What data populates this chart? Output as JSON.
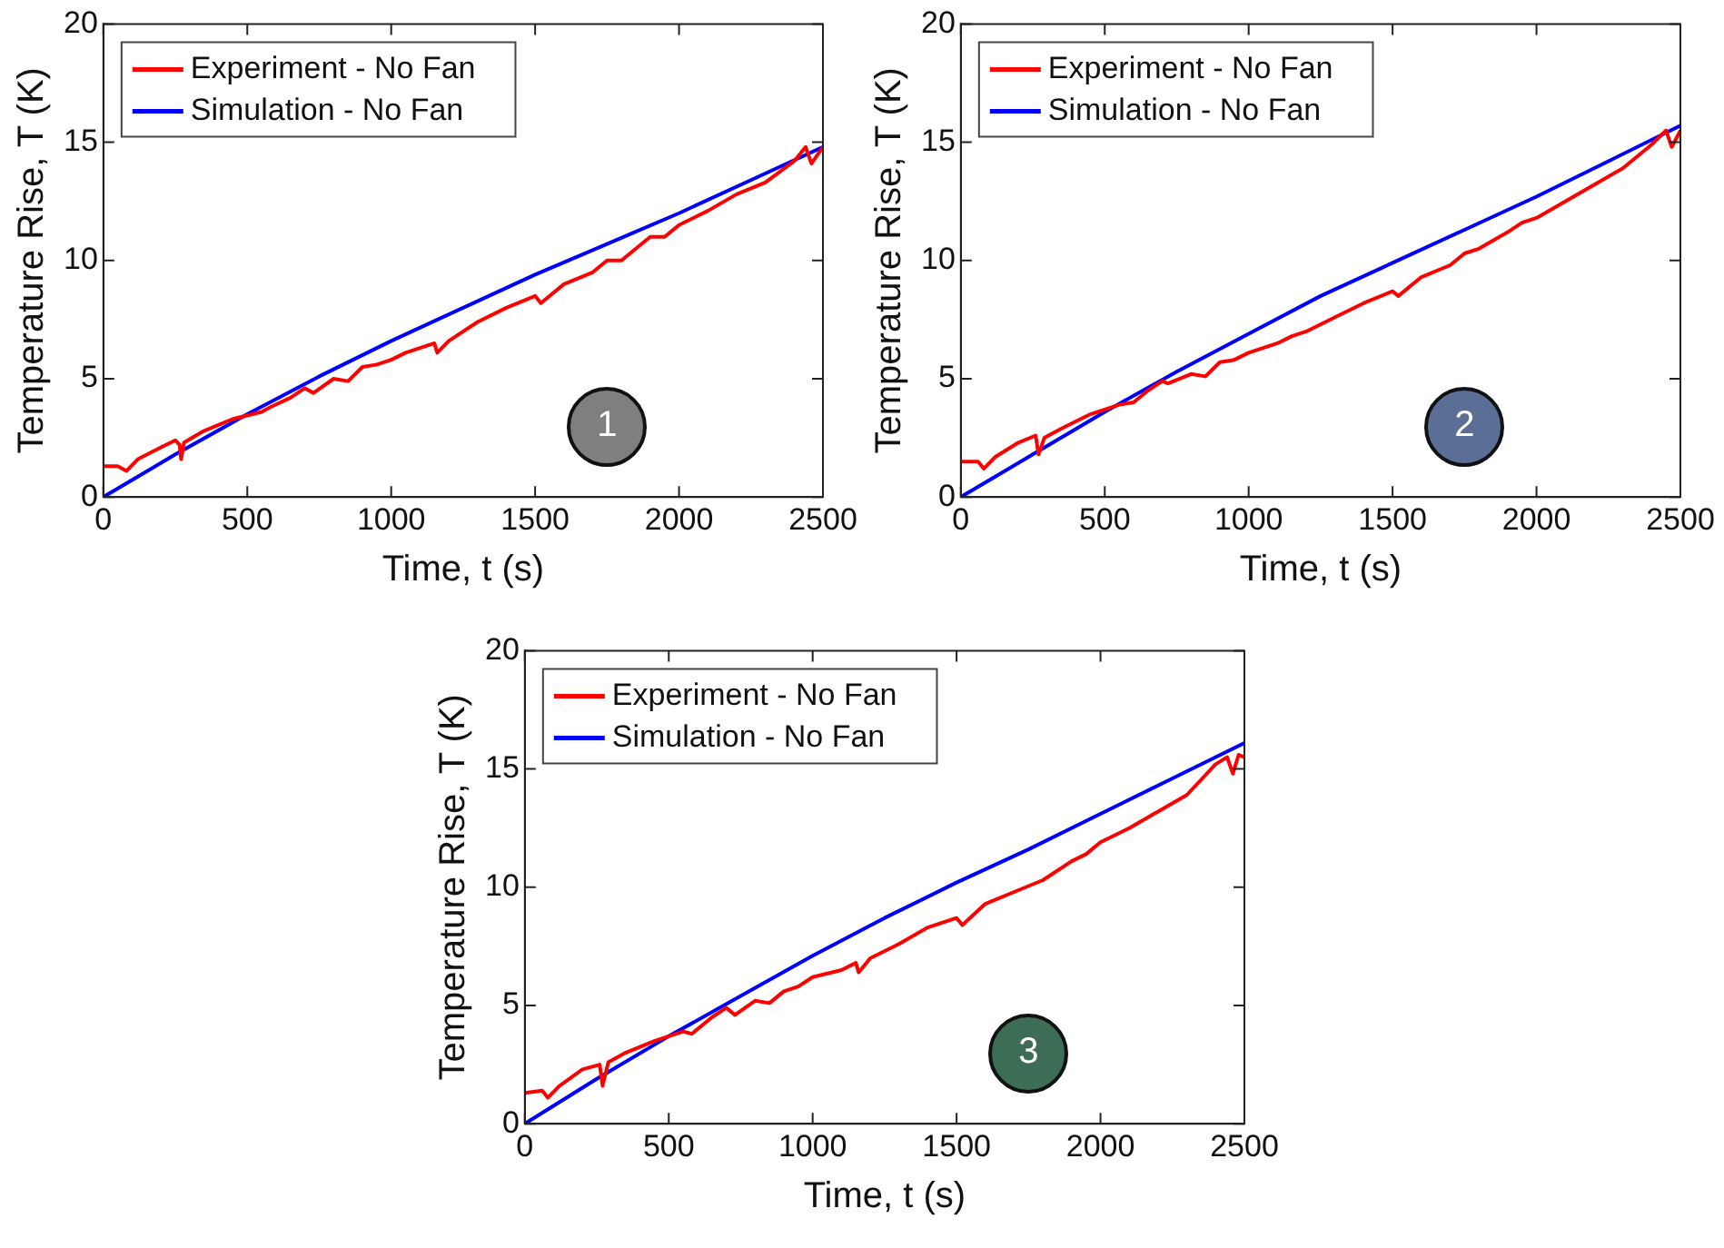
{
  "chart_data": [
    {
      "type": "line",
      "xlabel": "Time, t (s)",
      "ylabel": "Temperature Rise, T (K)",
      "xlim": [
        0,
        2500
      ],
      "ylim": [
        0,
        20
      ],
      "xticks": [
        0,
        500,
        1000,
        1500,
        2000,
        2500
      ],
      "yticks": [
        0,
        5,
        10,
        15,
        20
      ],
      "legend": "top left",
      "grid": false,
      "annotations": [
        "1"
      ],
      "series": [
        {
          "name": "Experiment - No Fan",
          "color": "#ff0000",
          "x": [
            0,
            50,
            80,
            120,
            200,
            250,
            265,
            270,
            280,
            350,
            450,
            550,
            580,
            650,
            700,
            730,
            800,
            850,
            900,
            950,
            1000,
            1050,
            1100,
            1150,
            1160,
            1200,
            1300,
            1400,
            1500,
            1520,
            1600,
            1700,
            1750,
            1800,
            1850,
            1900,
            1950,
            2000,
            2100,
            2200,
            2300,
            2400,
            2440,
            2460,
            2500
          ],
          "values": [
            1.3,
            1.3,
            1.1,
            1.6,
            2.1,
            2.4,
            2.2,
            1.6,
            2.3,
            2.8,
            3.3,
            3.6,
            3.8,
            4.2,
            4.6,
            4.4,
            5.0,
            4.9,
            5.5,
            5.6,
            5.8,
            6.1,
            6.3,
            6.5,
            6.1,
            6.6,
            7.4,
            8.0,
            8.5,
            8.2,
            9.0,
            9.5,
            10.0,
            10.0,
            10.5,
            11.0,
            11.0,
            11.5,
            12.1,
            12.8,
            13.3,
            14.2,
            14.8,
            14.1,
            14.8
          ]
        },
        {
          "name": "Simulation - No Fan",
          "color": "#0000ff",
          "x": [
            0,
            250,
            500,
            750,
            1000,
            1250,
            1500,
            1750,
            2000,
            2250,
            2500
          ],
          "values": [
            0,
            1.8,
            3.5,
            5.1,
            6.6,
            8.0,
            9.4,
            10.7,
            12.0,
            13.4,
            14.8
          ]
        }
      ]
    },
    {
      "type": "line",
      "xlabel": "Time, t (s)",
      "ylabel": "Temperature Rise, T (K)",
      "xlim": [
        0,
        2500
      ],
      "ylim": [
        0,
        20
      ],
      "xticks": [
        0,
        500,
        1000,
        1500,
        2000,
        2500
      ],
      "yticks": [
        0,
        5,
        10,
        15,
        20
      ],
      "legend": "top left",
      "grid": false,
      "annotations": [
        "2"
      ],
      "series": [
        {
          "name": "Experiment - No Fan",
          "color": "#ff0000",
          "x": [
            0,
            60,
            80,
            120,
            200,
            260,
            270,
            290,
            350,
            450,
            550,
            600,
            650,
            700,
            720,
            800,
            850,
            900,
            950,
            1000,
            1100,
            1150,
            1200,
            1300,
            1400,
            1500,
            1520,
            1600,
            1700,
            1750,
            1800,
            1900,
            1950,
            2000,
            2100,
            2200,
            2300,
            2400,
            2450,
            2470,
            2500
          ],
          "values": [
            1.5,
            1.5,
            1.2,
            1.7,
            2.3,
            2.6,
            1.8,
            2.5,
            2.9,
            3.5,
            3.9,
            4.0,
            4.5,
            4.9,
            4.8,
            5.2,
            5.1,
            5.7,
            5.8,
            6.1,
            6.5,
            6.8,
            7.0,
            7.6,
            8.2,
            8.7,
            8.5,
            9.3,
            9.8,
            10.3,
            10.5,
            11.2,
            11.6,
            11.8,
            12.5,
            13.2,
            13.9,
            14.9,
            15.5,
            14.8,
            15.5
          ]
        },
        {
          "name": "Simulation - No Fan",
          "color": "#0000ff",
          "x": [
            0,
            250,
            500,
            750,
            1000,
            1250,
            1500,
            1750,
            2000,
            2250,
            2500
          ],
          "values": [
            0,
            1.8,
            3.6,
            5.3,
            6.9,
            8.5,
            9.9,
            11.3,
            12.7,
            14.2,
            15.7
          ]
        }
      ]
    },
    {
      "type": "line",
      "xlabel": "Time, t (s)",
      "ylabel": "Temperature Rise, T (K)",
      "xlim": [
        0,
        2500
      ],
      "ylim": [
        0,
        20
      ],
      "xticks": [
        0,
        500,
        1000,
        1500,
        2000,
        2500
      ],
      "yticks": [
        0,
        5,
        10,
        15,
        20
      ],
      "legend": "top left",
      "grid": false,
      "annotations": [
        "3"
      ],
      "series": [
        {
          "name": "Experiment - No Fan",
          "color": "#ff0000",
          "x": [
            0,
            60,
            80,
            120,
            200,
            260,
            270,
            290,
            350,
            450,
            550,
            580,
            650,
            700,
            730,
            800,
            850,
            900,
            950,
            1000,
            1100,
            1150,
            1160,
            1200,
            1300,
            1400,
            1500,
            1520,
            1600,
            1700,
            1800,
            1900,
            1950,
            2000,
            2100,
            2200,
            2300,
            2400,
            2440,
            2460,
            2480,
            2500
          ],
          "values": [
            1.3,
            1.4,
            1.1,
            1.6,
            2.3,
            2.5,
            1.6,
            2.6,
            3.0,
            3.5,
            3.9,
            3.8,
            4.5,
            4.9,
            4.6,
            5.2,
            5.1,
            5.6,
            5.8,
            6.2,
            6.5,
            6.8,
            6.4,
            7.0,
            7.6,
            8.3,
            8.7,
            8.4,
            9.3,
            9.8,
            10.3,
            11.1,
            11.4,
            11.9,
            12.5,
            13.2,
            13.9,
            15.2,
            15.5,
            14.8,
            15.6,
            15.5
          ]
        },
        {
          "name": "Simulation - No Fan",
          "color": "#0000ff",
          "x": [
            0,
            250,
            500,
            750,
            1000,
            1250,
            1500,
            1750,
            2000,
            2250,
            2500
          ],
          "values": [
            0,
            1.9,
            3.7,
            5.4,
            7.1,
            8.7,
            10.2,
            11.6,
            13.1,
            14.6,
            16.1
          ]
        }
      ]
    }
  ]
}
